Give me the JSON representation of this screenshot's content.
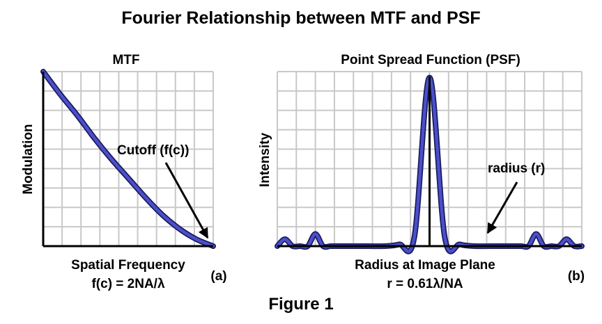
{
  "title": "Fourier Relationship between MTF and PSF",
  "caption": "Figure 1",
  "colors": {
    "curve_fill": "#4b4fc9",
    "curve_outline": "#1a1a5e",
    "grid": "#c8c8c8",
    "axis": "#000000"
  },
  "panel_a": {
    "title": "MTF",
    "ylabel": "Modulation",
    "xlabel": "Spatial Frequency",
    "formula": "f(c) = 2NA/λ",
    "tag": "(a)",
    "annotation": "Cutoff (f(c))"
  },
  "panel_b": {
    "title": "Point Spread Function (PSF)",
    "ylabel": "Intensity",
    "xlabel": "Radius at Image Plane",
    "formula": "r = 0.61λ/NA",
    "tag": "(b)",
    "annotation": "radius (r)"
  },
  "chart_data": [
    {
      "type": "line",
      "title": "MTF",
      "xlabel": "Spatial Frequency",
      "ylabel": "Modulation",
      "xlim": [
        0,
        1
      ],
      "ylim": [
        0,
        1
      ],
      "grid": true,
      "series": [
        {
          "x": [
            0,
            0.1,
            0.2,
            0.3,
            0.4,
            0.5,
            0.6,
            0.7,
            0.8,
            0.9,
            1.0
          ],
          "y": [
            1.0,
            0.87,
            0.75,
            0.62,
            0.5,
            0.39,
            0.28,
            0.18,
            0.1,
            0.04,
            0.0
          ]
        }
      ],
      "annotation": {
        "text": "Cutoff (f(c))",
        "points_to_x": 1.0,
        "points_to_y": 0.0
      }
    },
    {
      "type": "line",
      "title": "Point Spread Function (PSF)",
      "xlabel": "Radius at Image Plane",
      "ylabel": "Intensity",
      "xlim": [
        -1,
        1
      ],
      "ylim": [
        0,
        1
      ],
      "grid": true,
      "center_line_x": 0,
      "series": [
        {
          "x": [
            -1.0,
            -0.95,
            -0.9,
            -0.85,
            -0.8,
            -0.75,
            -0.7,
            -0.65,
            -0.6,
            -0.5,
            -0.4,
            -0.3,
            -0.2,
            -0.1,
            0,
            0.1,
            0.2,
            0.3,
            0.4,
            0.5,
            0.6,
            0.65,
            0.7,
            0.75,
            0.8,
            0.85,
            0.9,
            0.95,
            1.0
          ],
          "y": [
            0,
            0.04,
            0,
            0,
            0,
            0.07,
            0,
            0,
            0,
            0,
            0,
            0,
            0.01,
            0.05,
            0.97,
            0.05,
            0.01,
            0,
            0,
            0,
            0,
            0,
            0.07,
            0,
            0,
            0,
            0.04,
            0,
            0
          ]
        }
      ],
      "annotation": {
        "text": "radius (r)",
        "points_to_x": 0.25,
        "points_to_y": 0.0
      }
    }
  ]
}
